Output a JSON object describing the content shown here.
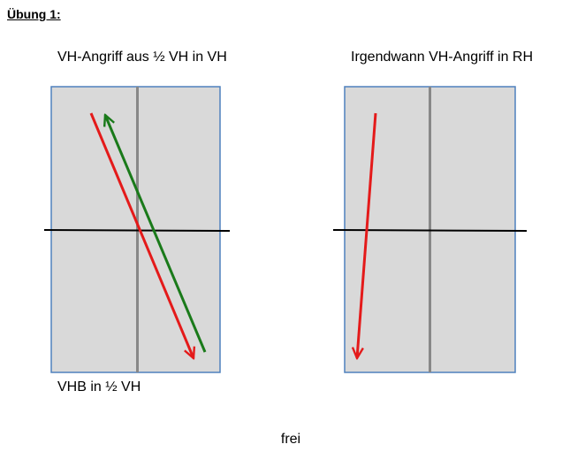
{
  "header": {
    "title": "Übung 1:"
  },
  "tables": [
    {
      "label": "VH-Angriff aus ½ VH in VH",
      "bottom_label": "VHB in ½ VH"
    },
    {
      "label": "Irgendwann VH-Angriff in RH"
    }
  ],
  "footer": "frei"
}
